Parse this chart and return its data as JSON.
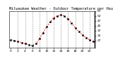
{
  "title": "Milwaukee Weather - Outdoor Temperature per Hour (Last 24 Hours)",
  "hours": [
    0,
    1,
    2,
    3,
    4,
    5,
    6,
    7,
    8,
    9,
    10,
    11,
    12,
    13,
    14,
    15,
    16,
    17,
    18,
    19,
    20,
    21,
    22,
    23
  ],
  "temps": [
    28,
    27,
    26,
    25,
    24,
    23,
    22,
    24,
    29,
    35,
    41,
    46,
    50,
    52,
    53,
    52,
    49,
    45,
    40,
    36,
    33,
    30,
    28,
    26
  ],
  "line_color": "#ff0000",
  "marker_color": "#000000",
  "background_color": "#ffffff",
  "grid_color": "#888888",
  "ylim_min": 20,
  "ylim_max": 57,
  "ytick_values": [
    27,
    32,
    37,
    42,
    47,
    52,
    57
  ],
  "xtick_hours": [
    0,
    2,
    4,
    6,
    8,
    10,
    12,
    14,
    16,
    18,
    20,
    22
  ],
  "vgrid_hours": [
    2,
    4,
    6,
    8,
    10,
    12,
    14,
    16,
    18,
    20,
    22
  ],
  "title_fontsize": 3.8,
  "tick_fontsize": 3.2
}
